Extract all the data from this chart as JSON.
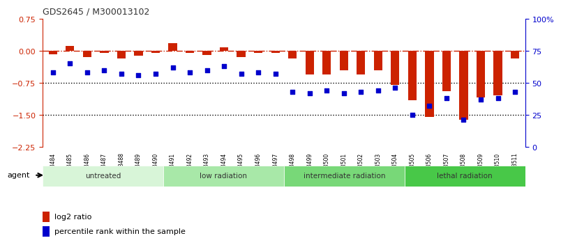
{
  "title": "GDS2645 / M300013102",
  "samples": [
    "GSM158484",
    "GSM158485",
    "GSM158486",
    "GSM158487",
    "GSM158488",
    "GSM158489",
    "GSM158490",
    "GSM158491",
    "GSM158492",
    "GSM158493",
    "GSM158494",
    "GSM158495",
    "GSM158496",
    "GSM158497",
    "GSM158498",
    "GSM158499",
    "GSM158500",
    "GSM158501",
    "GSM158502",
    "GSM158503",
    "GSM158504",
    "GSM158505",
    "GSM158506",
    "GSM158507",
    "GSM158508",
    "GSM158509",
    "GSM158510",
    "GSM158511"
  ],
  "log2_ratio": [
    -0.08,
    0.12,
    -0.15,
    -0.05,
    -0.18,
    -0.12,
    -0.05,
    0.18,
    -0.05,
    -0.1,
    0.08,
    -0.15,
    -0.05,
    -0.05,
    -0.18,
    -0.55,
    -0.55,
    -0.45,
    -0.55,
    -0.45,
    -0.8,
    -1.15,
    -1.55,
    -0.95,
    -1.62,
    -1.1,
    -1.05,
    -0.18
  ],
  "percentile_rank": [
    58,
    65,
    58,
    60,
    57,
    56,
    57,
    62,
    58,
    60,
    63,
    57,
    58,
    57,
    43,
    42,
    44,
    42,
    43,
    44,
    46,
    25,
    32,
    38,
    21,
    37,
    38,
    43
  ],
  "groups": [
    {
      "label": "untreated",
      "start": 0,
      "end": 7,
      "color": "#c8f0c8"
    },
    {
      "label": "low radiation",
      "start": 7,
      "end": 14,
      "color": "#90e890"
    },
    {
      "label": "intermediate radiation",
      "start": 14,
      "end": 21,
      "color": "#60d860"
    },
    {
      "label": "lethal radiation",
      "start": 21,
      "end": 28,
      "color": "#30c830"
    }
  ],
  "ylim_left": [
    -2.25,
    0.75
  ],
  "ylim_right": [
    0,
    100
  ],
  "yticks_left": [
    -2.25,
    -1.5,
    -0.75,
    0,
    0.75
  ],
  "yticks_right": [
    0,
    25,
    50,
    75,
    100
  ],
  "bar_color": "#cc2200",
  "dot_color": "#0000cc",
  "hline_color": "#cc2200",
  "dotted_line_color": "#000000",
  "background_color": "#ffffff",
  "agent_label": "agent",
  "legend_log2": "log2 ratio",
  "legend_pct": "percentile rank within the sample"
}
